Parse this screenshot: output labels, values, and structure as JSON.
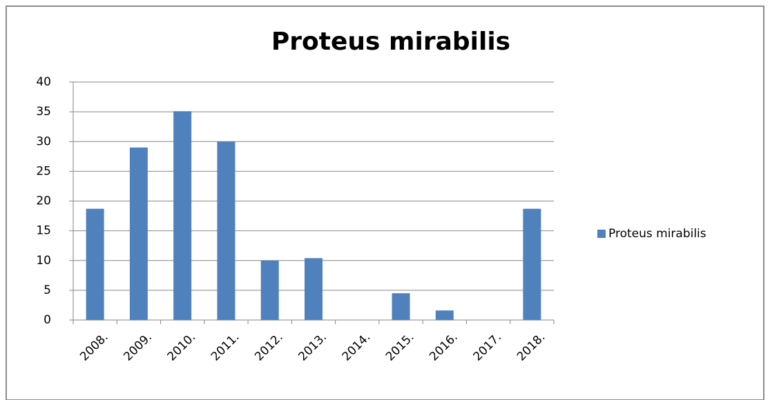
{
  "chart_data": {
    "type": "bar",
    "title": "Proteus mirabilis",
    "categories": [
      "2008.",
      "2009.",
      "2010.",
      "2011.",
      "2012.",
      "2013.",
      "2014.",
      "2015.",
      "2016.",
      "2017.",
      "2018."
    ],
    "series": [
      {
        "name": "Proteus mirabilis",
        "color": "#4f81bd",
        "values": [
          18.7,
          29.0,
          35.1,
          30.0,
          10.0,
          10.4,
          0,
          4.5,
          1.6,
          0,
          18.7
        ]
      }
    ],
    "ylim": [
      0,
      40
    ],
    "yticks": [
      0,
      5,
      10,
      15,
      20,
      25,
      30,
      35,
      40
    ],
    "grid": true,
    "legend": "right"
  }
}
